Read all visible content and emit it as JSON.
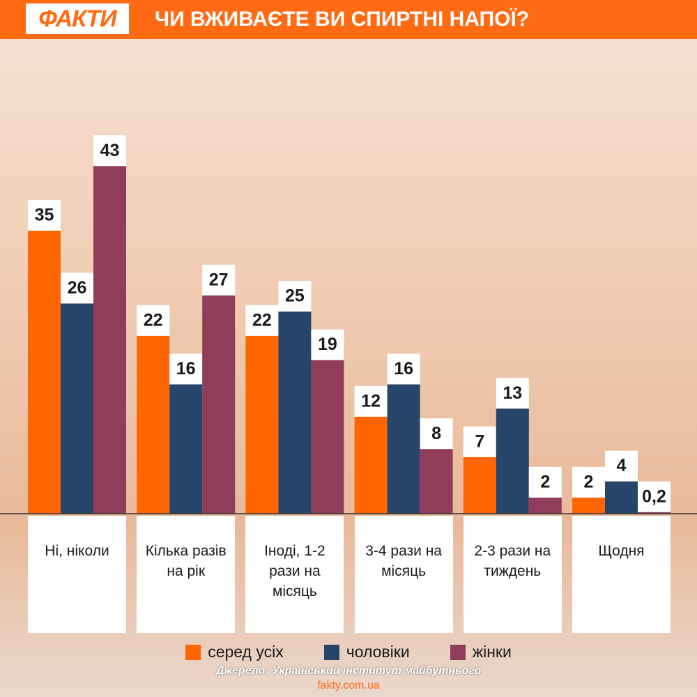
{
  "chart_data": {
    "type": "bar",
    "logo": "ФАКТИ",
    "title": "ЧИ ВЖИВАЄТЕ ВИ СПИРТНІ НАПОЇ?",
    "categories": [
      "Ні, ніколи",
      "Кілька разів на рік",
      "Іноді, 1-2 рази на місяць",
      "3-4 рази на місяць",
      "2-3 рази на тиждень",
      "Щодня"
    ],
    "series": [
      {
        "name": "серед усіх",
        "color": "#ff6600",
        "values": [
          35,
          22,
          22,
          12,
          7,
          2
        ]
      },
      {
        "name": "чоловіки",
        "color": "#27456b",
        "values": [
          26,
          16,
          25,
          16,
          13,
          4
        ]
      },
      {
        "name": "жінки",
        "color": "#8f3d5a",
        "values": [
          43,
          27,
          19,
          8,
          2,
          0.2
        ],
        "value_labels": [
          "43",
          "27",
          "19",
          "8",
          "2",
          "0,2"
        ]
      }
    ],
    "source": "Джерело: Український інститут майбутнього",
    "url": "fakty.com.ua"
  }
}
